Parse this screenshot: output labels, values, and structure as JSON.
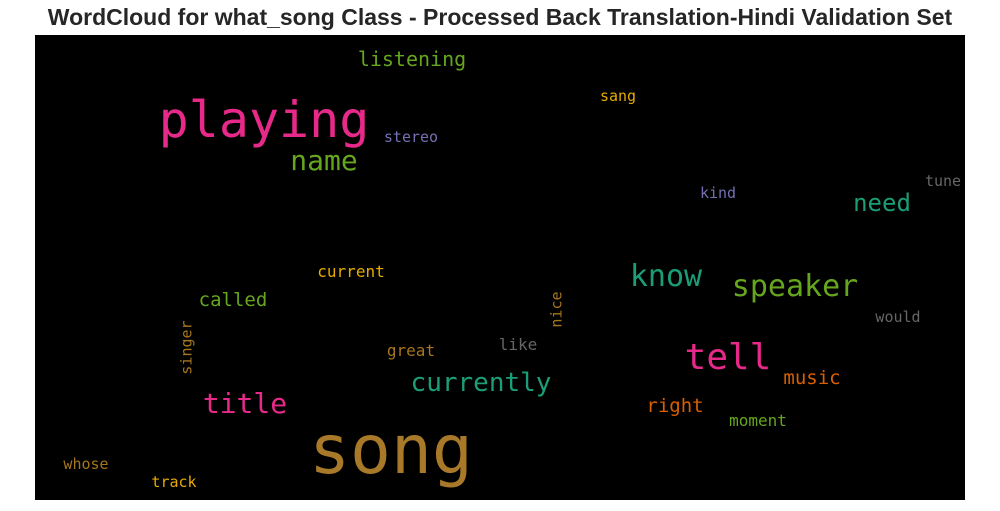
{
  "chart_data": {
    "type": "wordcloud",
    "title": "WordCloud for what_song Class - Processed Back Translation-Hindi Validation Set",
    "background": "#000000",
    "words": [
      {
        "text": "song",
        "color": "#a9792a"
      },
      {
        "text": "playing",
        "color": "#e7298a"
      },
      {
        "text": "tell",
        "color": "#e7298a"
      },
      {
        "text": "know",
        "color": "#1b9e77"
      },
      {
        "text": "speaker",
        "color": "#66a61e"
      },
      {
        "text": "name",
        "color": "#66a61e"
      },
      {
        "text": "title",
        "color": "#e7298a"
      },
      {
        "text": "currently",
        "color": "#1b9e77"
      },
      {
        "text": "need",
        "color": "#1b9e77"
      },
      {
        "text": "listening",
        "color": "#66a61e"
      },
      {
        "text": "called",
        "color": "#66a61e"
      },
      {
        "text": "music",
        "color": "#d95f02"
      },
      {
        "text": "right",
        "color": "#d95f02"
      },
      {
        "text": "current",
        "color": "#e6ab02"
      },
      {
        "text": "moment",
        "color": "#66a61e"
      },
      {
        "text": "great",
        "color": "#a6761d"
      },
      {
        "text": "like",
        "color": "#666666"
      },
      {
        "text": "nice",
        "color": "#a6761d"
      },
      {
        "text": "singer",
        "color": "#a6761d"
      },
      {
        "text": "stereo",
        "color": "#7570b3"
      },
      {
        "text": "sang",
        "color": "#e6ab02"
      },
      {
        "text": "kind",
        "color": "#7570b3"
      },
      {
        "text": "tune",
        "color": "#666666"
      },
      {
        "text": "would",
        "color": "#666666"
      },
      {
        "text": "whose",
        "color": "#a6761d"
      },
      {
        "text": "track",
        "color": "#e6ab02"
      }
    ]
  }
}
